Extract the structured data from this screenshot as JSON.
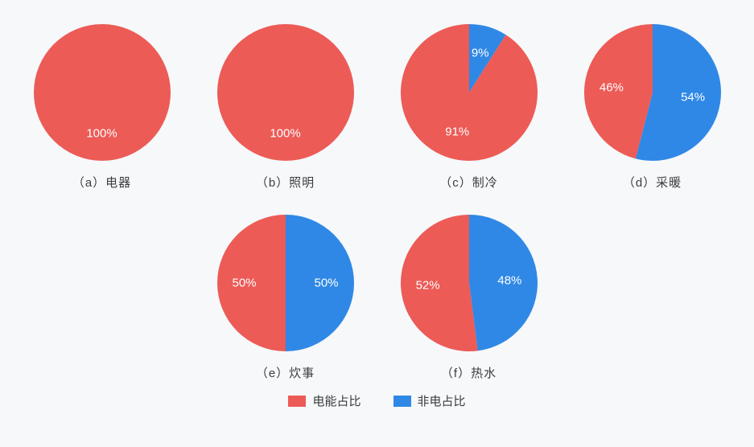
{
  "background_color": "#f6f8fa",
  "series_colors": {
    "electric": "#ec5b56",
    "non_electric": "#2f88e6"
  },
  "label_text_color": "#ffffff",
  "caption_color": "#3c3c3c",
  "label_fontsize": 15,
  "caption_fontsize": 15,
  "pie_radius": 85,
  "pie_rotation_start_deg": 0,
  "charts": [
    {
      "id": "a",
      "caption": "（a）电器",
      "electric_pct": 100,
      "non_electric_pct": 0,
      "electric_label": "100%",
      "non_electric_label": ""
    },
    {
      "id": "b",
      "caption": "（b）照明",
      "electric_pct": 100,
      "non_electric_pct": 0,
      "electric_label": "100%",
      "non_electric_label": ""
    },
    {
      "id": "c",
      "caption": "（c）制冷",
      "electric_pct": 91,
      "non_electric_pct": 9,
      "electric_label": "91%",
      "non_electric_label": "9%"
    },
    {
      "id": "d",
      "caption": "（d）采暖",
      "electric_pct": 46,
      "non_electric_pct": 54,
      "electric_label": "46%",
      "non_electric_label": "54%"
    },
    {
      "id": "e",
      "caption": "（e）炊事",
      "electric_pct": 50,
      "non_electric_pct": 50,
      "electric_label": "50%",
      "non_electric_label": "50%"
    },
    {
      "id": "f",
      "caption": "（f）热水",
      "electric_pct": 52,
      "non_electric_pct": 48,
      "electric_label": "52%",
      "non_electric_label": "48%"
    }
  ],
  "legend": {
    "electric_label": "电能占比",
    "non_electric_label": "非电占比"
  }
}
